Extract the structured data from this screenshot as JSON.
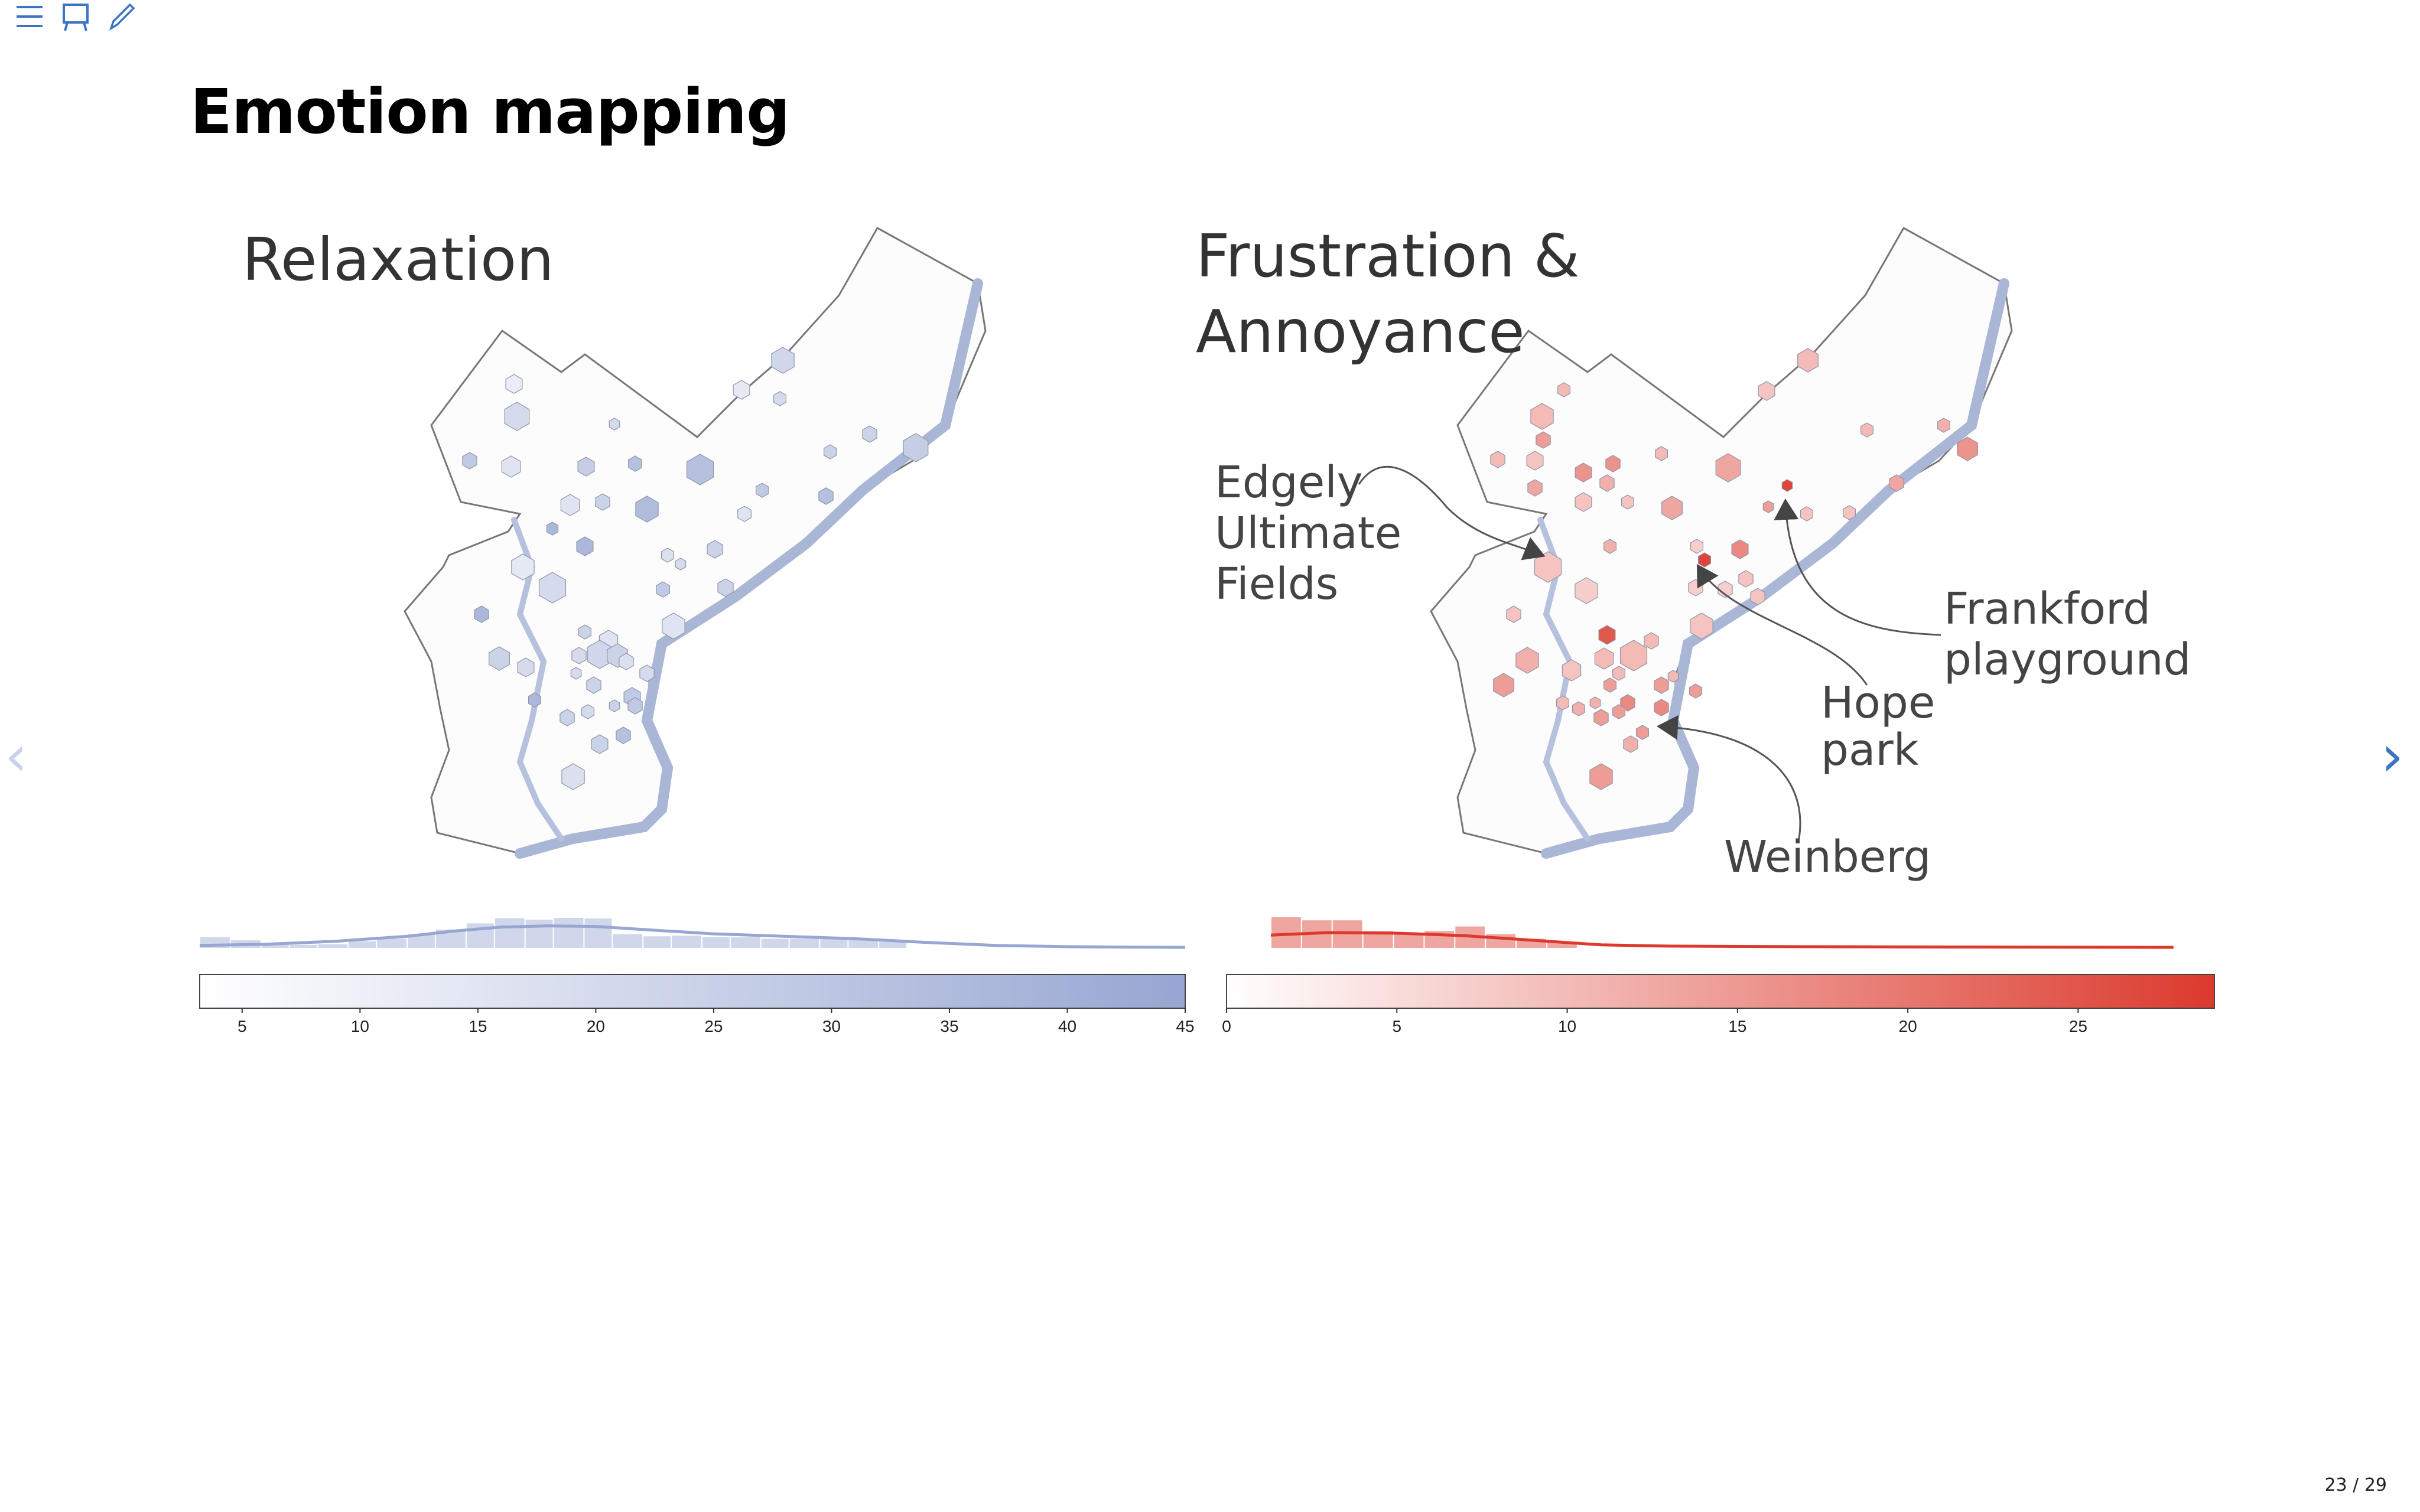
{
  "slide": {
    "title": "Emotion mapping",
    "page_indicator": "23 / 29"
  },
  "panels": {
    "left": {
      "title": "Relaxation",
      "color": "#97a6d2"
    },
    "right": {
      "title_line1": "Frustration &",
      "title_line2": "Annoyance",
      "color": "#dc3a2d",
      "annotations": [
        {
          "lines": [
            "Edgely",
            "Ultimate",
            "Fields"
          ]
        },
        {
          "lines": [
            "Frankford",
            "playground"
          ]
        },
        {
          "lines": [
            "Hope",
            "park"
          ]
        },
        {
          "lines": [
            "Weinberg"
          ]
        }
      ]
    }
  },
  "chart_data": [
    {
      "type": "colorbar",
      "series": "Relaxation",
      "range": [
        3.2,
        45
      ],
      "ticks": [
        5,
        10,
        15,
        20,
        25,
        30,
        35,
        40,
        45
      ],
      "tick_labels": [
        "5",
        "10",
        "15",
        "20",
        "25",
        "30",
        "35",
        "40",
        "45"
      ],
      "color_low": "#ffffff",
      "color_high": "#97a6d2",
      "histogram": {
        "bins": [
          [
            3.2,
            4.5,
            0.35
          ],
          [
            4.5,
            5.8,
            0.25
          ],
          [
            5.8,
            7,
            0.15
          ],
          [
            7,
            8.2,
            0.1
          ],
          [
            8.2,
            9.5,
            0.12
          ],
          [
            9.5,
            10.7,
            0.22
          ],
          [
            10.7,
            12,
            0.3
          ],
          [
            12,
            13.2,
            0.45
          ],
          [
            13.2,
            14.5,
            0.6
          ],
          [
            14.5,
            15.7,
            0.8
          ],
          [
            15.7,
            17,
            0.97
          ],
          [
            17,
            18.2,
            0.92
          ],
          [
            18.2,
            19.5,
            0.98
          ],
          [
            19.5,
            20.7,
            0.96
          ],
          [
            20.7,
            22,
            0.45
          ],
          [
            22,
            23.2,
            0.38
          ],
          [
            23.2,
            24.5,
            0.4
          ],
          [
            24.5,
            25.7,
            0.35
          ],
          [
            25.7,
            27,
            0.35
          ],
          [
            27,
            28.2,
            0.3
          ],
          [
            28.2,
            29.5,
            0.3
          ],
          [
            29.5,
            30.7,
            0.3
          ],
          [
            30.7,
            32,
            0.3
          ],
          [
            32,
            33.2,
            0.2
          ]
        ],
        "density": [
          [
            3.2,
            0.08
          ],
          [
            6,
            0.12
          ],
          [
            9,
            0.22
          ],
          [
            12,
            0.38
          ],
          [
            14,
            0.55
          ],
          [
            16,
            0.68
          ],
          [
            18,
            0.72
          ],
          [
            20,
            0.7
          ],
          [
            22,
            0.6
          ],
          [
            25,
            0.46
          ],
          [
            28,
            0.38
          ],
          [
            31,
            0.3
          ],
          [
            34,
            0.18
          ],
          [
            37,
            0.08
          ],
          [
            40,
            0.04
          ],
          [
            45,
            0.02
          ]
        ]
      }
    },
    {
      "type": "colorbar",
      "series": "Frustration & Annoyance",
      "range": [
        0,
        29
      ],
      "ticks": [
        0,
        5,
        10,
        15,
        20,
        25
      ],
      "tick_labels": [
        "0",
        "5",
        "10",
        "15",
        "20",
        "25"
      ],
      "color_low": "#ffffff",
      "color_high": "#dc3a2d",
      "histogram": {
        "bins": [
          [
            1.3,
            2.2,
            1.0
          ],
          [
            2.2,
            3.1,
            0.9
          ],
          [
            3.1,
            4,
            0.9
          ],
          [
            4,
            4.9,
            0.55
          ],
          [
            4.9,
            5.8,
            0.45
          ],
          [
            5.8,
            6.7,
            0.55
          ],
          [
            6.7,
            7.6,
            0.7
          ],
          [
            7.6,
            8.5,
            0.45
          ],
          [
            8.5,
            9.4,
            0.3
          ],
          [
            9.4,
            10.3,
            0.2
          ]
        ],
        "density": [
          [
            1.3,
            0.42
          ],
          [
            3,
            0.5
          ],
          [
            5,
            0.48
          ],
          [
            7,
            0.4
          ],
          [
            9,
            0.25
          ],
          [
            11,
            0.1
          ],
          [
            13,
            0.06
          ],
          [
            17,
            0.04
          ],
          [
            22,
            0.03
          ],
          [
            27.8,
            0.02
          ]
        ]
      }
    }
  ],
  "icons": {
    "prev": "chevron-left-icon",
    "next": "chevron-right-icon",
    "menu": "menu-icon",
    "overview": "presentation-board-icon",
    "annotate": "pen-icon"
  }
}
